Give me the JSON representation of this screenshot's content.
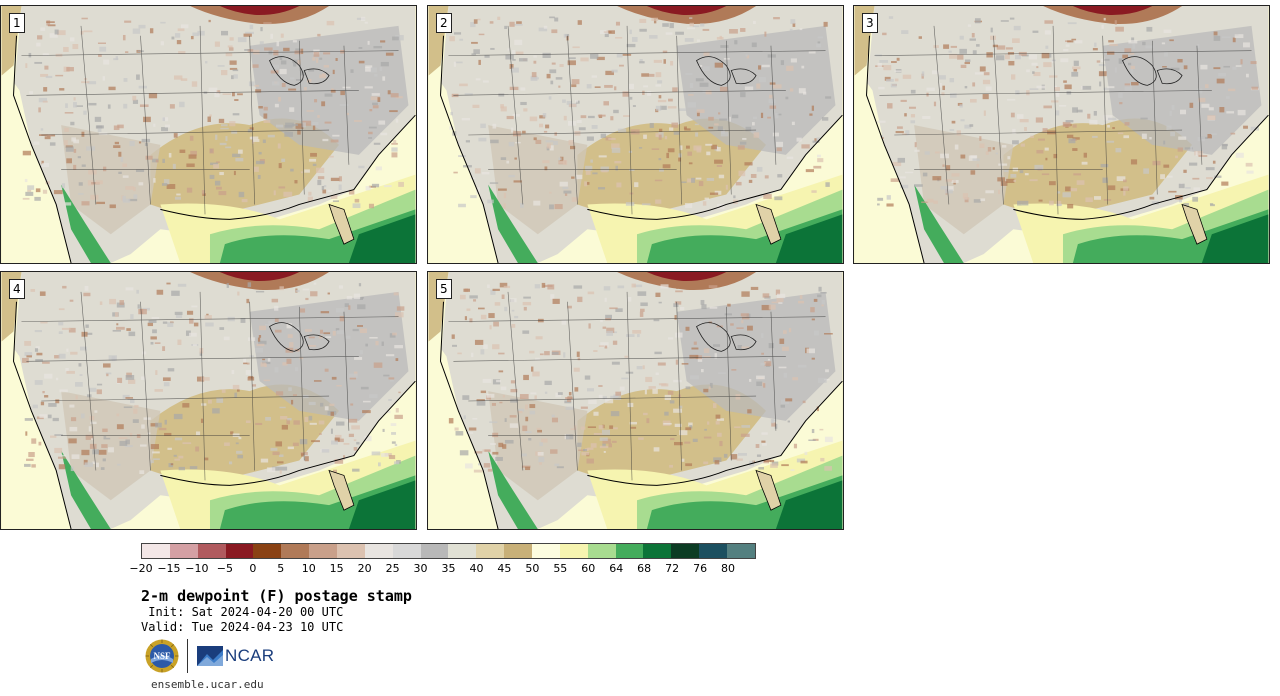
{
  "panels": [
    {
      "label": "1"
    },
    {
      "label": "2"
    },
    {
      "label": "3"
    },
    {
      "label": "4"
    },
    {
      "label": "5"
    }
  ],
  "colorbar": {
    "colors": [
      "#f3e7e7",
      "#d4a0a4",
      "#b05a5e",
      "#8a1a22",
      "#8a4214",
      "#b07a58",
      "#c9a08a",
      "#dcc2b0",
      "#e8e4e0",
      "#d8d8d8",
      "#b8b8b8",
      "#e0e0d4",
      "#e0d2a8",
      "#c8b078",
      "#fdfde0",
      "#f6f4b0",
      "#a8dc90",
      "#44ac5c",
      "#0c7438",
      "#0c3c24",
      "#1c5060",
      "#548080"
    ],
    "ticks": [
      "−20",
      "−15",
      "−10",
      "−5",
      "0",
      "5",
      "10",
      "15",
      "20",
      "25",
      "30",
      "35",
      "40",
      "45",
      "50",
      "55",
      "60",
      "64",
      "68",
      "72",
      "76",
      "80"
    ]
  },
  "title": "2-m dewpoint (F) postage stamp",
  "init_line": " Init: Sat 2024-04-20 00 UTC",
  "valid_line": "Valid: Tue 2024-04-23 10 UTC",
  "logos": {
    "nsf": "NSF",
    "ncar": "NCAR"
  },
  "website": "ensemble.ucar.edu"
}
